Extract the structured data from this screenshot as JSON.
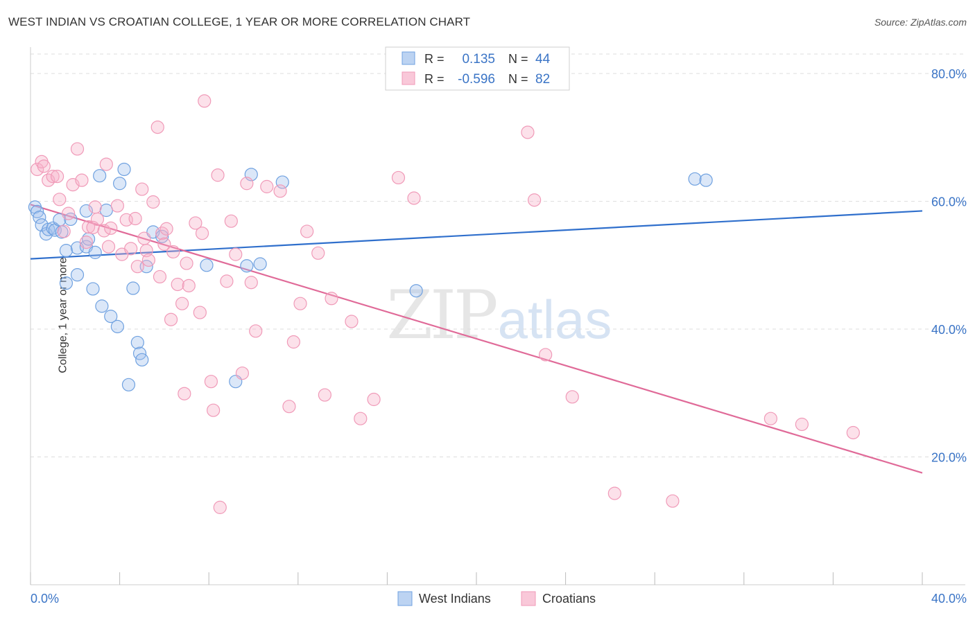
{
  "title": "WEST INDIAN VS CROATIAN COLLEGE, 1 YEAR OR MORE CORRELATION CHART",
  "source": "Source: ZipAtlas.com",
  "watermark": {
    "zip": "ZIP",
    "atlas": "atlas"
  },
  "legend_stats": [
    {
      "r_label": "R =",
      "r_value": "0.135",
      "n_label": "N =",
      "n_value": "44",
      "color": "#6fa1e0"
    },
    {
      "r_label": "R =",
      "r_value": "-0.596",
      "n_label": "N =",
      "n_value": "82",
      "color": "#f09ab8"
    }
  ],
  "chart_data": {
    "type": "scatter",
    "title": "WEST INDIAN VS CROATIAN COLLEGE, 1 YEAR OR MORE CORRELATION CHART",
    "xlabel": "",
    "ylabel": "College, 1 year or more",
    "xlim": [
      0,
      40
    ],
    "ylim": [
      0,
      85
    ],
    "x_tick_labels": [
      "0.0%",
      "40.0%"
    ],
    "y_ticks": [
      20,
      40,
      60,
      80
    ],
    "y_tick_labels": [
      "20.0%",
      "40.0%",
      "60.0%",
      "80.0%"
    ],
    "grid": true,
    "legend_position": "bottom-center",
    "series": [
      {
        "name": "West Indians",
        "color": "#6fa1e0",
        "r": 0.135,
        "n": 44,
        "trend": {
          "x": [
            0,
            40
          ],
          "y": [
            51.0,
            58.5
          ]
        },
        "points": [
          [
            0.2,
            59.1
          ],
          [
            0.3,
            58.4
          ],
          [
            0.4,
            57.5
          ],
          [
            0.5,
            56.3
          ],
          [
            0.7,
            54.9
          ],
          [
            0.8,
            55.6
          ],
          [
            1.0,
            55.8
          ],
          [
            1.1,
            55.5
          ],
          [
            1.3,
            57.1
          ],
          [
            1.4,
            55.2
          ],
          [
            1.6,
            52.3
          ],
          [
            1.8,
            57.2
          ],
          [
            2.1,
            52.7
          ],
          [
            2.5,
            52.9
          ],
          [
            2.6,
            54.1
          ],
          [
            2.5,
            58.5
          ],
          [
            2.9,
            52.0
          ],
          [
            3.1,
            64.0
          ],
          [
            3.4,
            58.6
          ],
          [
            4.0,
            62.8
          ],
          [
            4.2,
            65.0
          ],
          [
            5.5,
            55.2
          ],
          [
            5.9,
            54.5
          ],
          [
            1.6,
            47.2
          ],
          [
            2.1,
            48.5
          ],
          [
            2.8,
            46.3
          ],
          [
            3.2,
            43.6
          ],
          [
            3.6,
            42.0
          ],
          [
            3.9,
            40.4
          ],
          [
            4.6,
            46.4
          ],
          [
            5.2,
            49.8
          ],
          [
            4.8,
            37.9
          ],
          [
            4.9,
            36.2
          ],
          [
            5.0,
            35.2
          ],
          [
            4.4,
            31.3
          ],
          [
            9.7,
            49.9
          ],
          [
            9.9,
            64.2
          ],
          [
            10.3,
            50.2
          ],
          [
            11.3,
            63.0
          ],
          [
            17.3,
            46.0
          ],
          [
            29.8,
            63.5
          ],
          [
            30.3,
            63.3
          ],
          [
            9.2,
            31.8
          ],
          [
            7.9,
            50.0
          ]
        ]
      },
      {
        "name": "Croatians",
        "color": "#f09ab8",
        "r": -0.596,
        "n": 82,
        "trend": {
          "x": [
            0,
            40
          ],
          "y": [
            59.5,
            17.5
          ]
        },
        "points": [
          [
            0.3,
            65.0
          ],
          [
            0.5,
            66.2
          ],
          [
            0.6,
            65.5
          ],
          [
            0.8,
            63.3
          ],
          [
            1.0,
            63.9
          ],
          [
            1.2,
            63.9
          ],
          [
            1.3,
            60.3
          ],
          [
            1.5,
            55.3
          ],
          [
            1.7,
            58.1
          ],
          [
            1.9,
            62.6
          ],
          [
            2.1,
            68.2
          ],
          [
            2.3,
            63.3
          ],
          [
            2.5,
            53.6
          ],
          [
            2.6,
            56.0
          ],
          [
            2.8,
            55.9
          ],
          [
            2.9,
            59.1
          ],
          [
            3.0,
            57.2
          ],
          [
            3.3,
            55.4
          ],
          [
            3.4,
            65.8
          ],
          [
            3.5,
            52.9
          ],
          [
            3.6,
            55.8
          ],
          [
            3.9,
            59.3
          ],
          [
            4.1,
            51.7
          ],
          [
            4.3,
            57.1
          ],
          [
            4.5,
            52.6
          ],
          [
            4.7,
            57.3
          ],
          [
            4.8,
            49.8
          ],
          [
            5.0,
            61.9
          ],
          [
            5.1,
            54.2
          ],
          [
            5.2,
            52.3
          ],
          [
            5.3,
            50.8
          ],
          [
            5.5,
            59.9
          ],
          [
            5.7,
            71.6
          ],
          [
            5.8,
            48.2
          ],
          [
            5.9,
            55.0
          ],
          [
            6.0,
            53.3
          ],
          [
            6.1,
            55.7
          ],
          [
            6.3,
            41.5
          ],
          [
            6.6,
            47.0
          ],
          [
            6.8,
            44.0
          ],
          [
            7.0,
            50.3
          ],
          [
            7.1,
            46.8
          ],
          [
            7.4,
            56.6
          ],
          [
            7.6,
            42.6
          ],
          [
            7.7,
            55.0
          ],
          [
            7.8,
            75.7
          ],
          [
            8.1,
            31.8
          ],
          [
            8.2,
            27.3
          ],
          [
            8.4,
            64.1
          ],
          [
            8.5,
            12.1
          ],
          [
            8.8,
            47.5
          ],
          [
            9.0,
            56.9
          ],
          [
            9.2,
            51.7
          ],
          [
            9.5,
            33.1
          ],
          [
            9.7,
            62.8
          ],
          [
            9.9,
            47.3
          ],
          [
            10.1,
            39.7
          ],
          [
            10.6,
            62.3
          ],
          [
            11.2,
            61.6
          ],
          [
            11.6,
            27.9
          ],
          [
            11.8,
            38.0
          ],
          [
            12.1,
            44.0
          ],
          [
            12.4,
            55.3
          ],
          [
            12.9,
            51.9
          ],
          [
            13.2,
            29.7
          ],
          [
            13.5,
            44.8
          ],
          [
            14.4,
            41.2
          ],
          [
            14.8,
            26.0
          ],
          [
            15.4,
            29.0
          ],
          [
            16.5,
            63.7
          ],
          [
            17.2,
            60.5
          ],
          [
            6.9,
            29.9
          ],
          [
            22.3,
            70.8
          ],
          [
            22.6,
            60.2
          ],
          [
            23.1,
            36.0
          ],
          [
            24.3,
            29.4
          ],
          [
            26.2,
            14.3
          ],
          [
            28.8,
            13.1
          ],
          [
            33.2,
            26.0
          ],
          [
            34.6,
            25.1
          ],
          [
            36.9,
            23.8
          ],
          [
            6.4,
            52.1
          ]
        ]
      }
    ]
  }
}
